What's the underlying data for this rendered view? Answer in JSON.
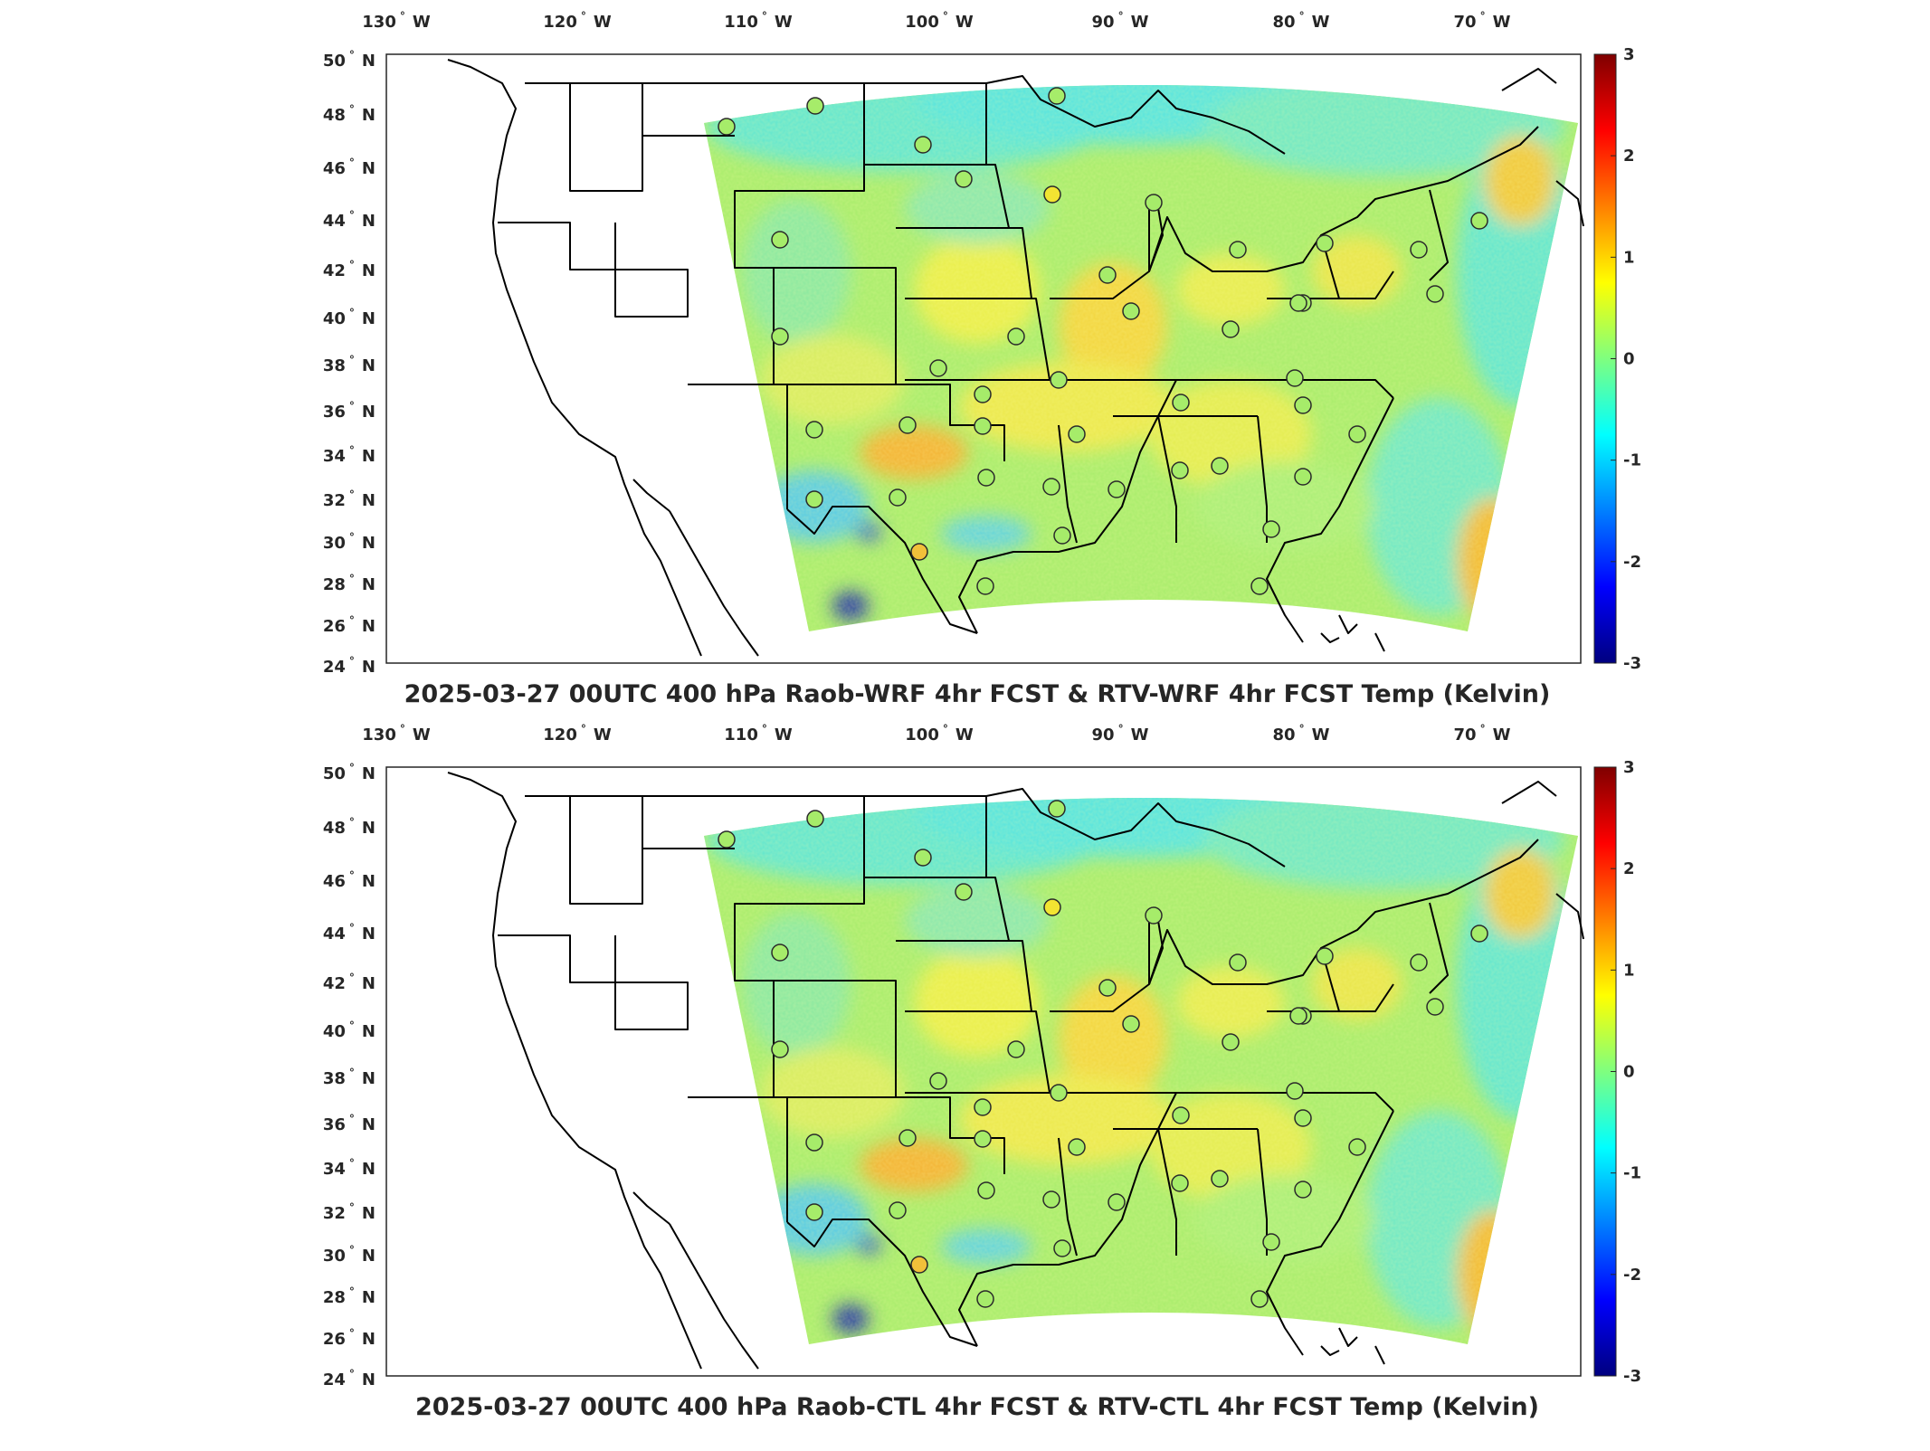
{
  "panels": [
    {
      "title": "2025-03-27 00UTC 400 hPa Raob-WRF 4hr FCST & RTV-WRF 4hr FCST Temp (Kelvin)",
      "lon_ticks": [
        "130",
        "120",
        "110",
        "100",
        "90",
        "80",
        "70"
      ],
      "lon_suffix": "W",
      "lat_ticks": [
        "50",
        "48",
        "46",
        "44",
        "42",
        "40",
        "38",
        "36",
        "34",
        "32",
        "30",
        "28",
        "26",
        "24"
      ],
      "lat_suffix": "N",
      "colorbar_ticks": [
        "3",
        "2",
        "1",
        "0",
        "-1",
        "-2",
        "-3"
      ]
    },
    {
      "title": "2025-03-27 00UTC 400 hPa Raob-CTL 4hr FCST & RTV-CTL 4hr FCST Temp (Kelvin)",
      "lon_ticks": [
        "130",
        "120",
        "110",
        "100",
        "90",
        "80",
        "70"
      ],
      "lon_suffix": "W",
      "lat_ticks": [
        "50",
        "48",
        "46",
        "44",
        "42",
        "40",
        "38",
        "36",
        "34",
        "32",
        "30",
        "28",
        "26",
        "24"
      ],
      "lat_suffix": "N",
      "colorbar_ticks": [
        "3",
        "2",
        "1",
        "0",
        "-1",
        "-2",
        "-3"
      ]
    }
  ],
  "map": {
    "colormap": "jet",
    "value_range": [
      -3,
      3
    ],
    "lon_range": [
      -130,
      -63
    ],
    "lat_range": [
      24,
      50
    ],
    "raob_stations_count": 40
  }
}
